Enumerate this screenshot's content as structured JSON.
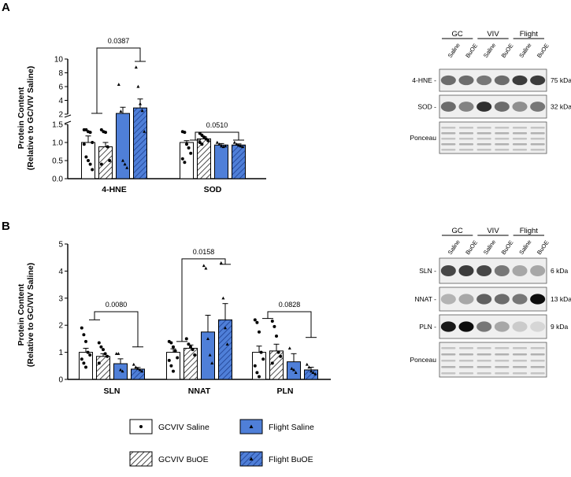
{
  "panels": {
    "a": {
      "label": "A"
    },
    "b": {
      "label": "B"
    }
  },
  "colors": {
    "saline_fill": "#ffffff",
    "flight_fill": "#4f7fd8",
    "flight_hatch": "#1e3f8f",
    "axis": "#000000",
    "blot_bg": "#efefef"
  },
  "chart_data": [
    {
      "id": "panel-a",
      "type": "bar",
      "ylabel": "Protein Content\n(Relative to GC/VIV Saline)",
      "axis_break": true,
      "ylim_lower": [
        0,
        1.5
      ],
      "ylim_upper": [
        2,
        10
      ],
      "yticks_lower": [
        "0.0",
        "0.5",
        "1.0",
        "1.5"
      ],
      "yticks_upper": [
        "2",
        "4",
        "6",
        "8",
        "10"
      ],
      "categories": [
        "4-HNE",
        "SOD"
      ],
      "series": [
        {
          "name": "GCVIV Saline",
          "values": [
            1.0,
            1.0
          ],
          "sem": [
            0.18,
            0.05
          ]
        },
        {
          "name": "GCVIV BuOE",
          "values": [
            0.88,
            1.1
          ],
          "sem": [
            0.12,
            0.06
          ]
        },
        {
          "name": "Flight Saline",
          "values": [
            2.1,
            0.93
          ],
          "sem": [
            0.9,
            0.04
          ]
        },
        {
          "name": "Flight BuOE",
          "values": [
            2.9,
            0.93
          ],
          "sem": [
            1.3,
            0.03
          ]
        }
      ],
      "points": [
        [
          [
            1.35,
            1.35,
            1.3,
            1.28,
            1.0,
            0.95,
            0.6,
            0.5,
            0.4,
            0.25
          ],
          [
            1.3,
            1.28,
            0.95,
            0.85,
            0.7,
            0.55,
            0.45
          ]
        ],
        [
          [
            1.35,
            1.3,
            1.28,
            0.88,
            0.5,
            0.4
          ],
          [
            1.25,
            1.2,
            1.15,
            1.1,
            1.05,
            1.0,
            0.95
          ]
        ],
        [
          [
            6.3,
            2.4,
            0.5,
            0.4,
            0.3
          ],
          [
            1.0,
            0.95,
            0.9,
            0.88,
            0.9
          ]
        ],
        [
          [
            8.8,
            6.0,
            3.5,
            2.5,
            1.3
          ],
          [
            1.0,
            0.95,
            0.92,
            0.9,
            0.88
          ]
        ]
      ],
      "annotations": [
        {
          "text": "0.0387",
          "category": "4-HNE"
        },
        {
          "text": "0.0510",
          "category": "SOD"
        }
      ]
    },
    {
      "id": "panel-b",
      "type": "bar",
      "ylabel": "Protein Content\n(Relative to GC/VIV Saline)",
      "ylim": [
        0,
        5
      ],
      "yticks": [
        "0",
        "1",
        "2",
        "3",
        "4",
        "5"
      ],
      "categories": [
        "SLN",
        "NNAT",
        "PLN"
      ],
      "series": [
        {
          "name": "GCVIV Saline",
          "values": [
            1.0,
            1.0,
            1.0
          ],
          "sem": [
            0.15,
            0.13,
            0.23
          ]
        },
        {
          "name": "GCVIV BuOE",
          "values": [
            0.85,
            1.15,
            1.05
          ],
          "sem": [
            0.1,
            0.12,
            0.25
          ]
        },
        {
          "name": "Flight Saline",
          "values": [
            0.58,
            1.75,
            0.65
          ],
          "sem": [
            0.18,
            0.62,
            0.3
          ]
        },
        {
          "name": "Flight BuOE",
          "values": [
            0.38,
            2.2,
            0.35
          ],
          "sem": [
            0.06,
            0.6,
            0.1
          ]
        }
      ],
      "points": [
        [
          [
            1.9,
            1.65,
            1.4,
            1.0,
            0.9,
            0.75,
            0.6,
            0.45
          ],
          [
            1.4,
            1.35,
            1.2,
            1.05,
            0.8,
            0.7,
            0.5,
            0.3
          ],
          [
            2.2,
            2.1,
            1.75,
            1.0,
            0.75,
            0.5,
            0.25,
            0.1
          ]
        ],
        [
          [
            1.35,
            1.2,
            1.1,
            0.95,
            0.85,
            0.6
          ],
          [
            1.5,
            1.3,
            1.2,
            1.1,
            0.9
          ],
          [
            2.15,
            1.95,
            1.6,
            1.0,
            0.85,
            0.6
          ]
        ],
        [
          [
            0.95,
            0.95,
            0.35,
            0.3
          ],
          [
            4.2,
            4.1,
            1.5,
            0.9,
            0.6
          ],
          [
            1.15,
            0.4,
            0.35,
            0.25
          ]
        ],
        [
          [
            0.55,
            0.45,
            0.4,
            0.35,
            0.3
          ],
          [
            4.3,
            3.0,
            1.9,
            1.3
          ],
          [
            0.55,
            0.45,
            0.3,
            0.25,
            0.2
          ]
        ]
      ],
      "annotations": [
        {
          "text": "0.0080",
          "category": "SLN"
        },
        {
          "text": "0.0158",
          "category": "NNAT"
        },
        {
          "text": "0.0828",
          "category": "PLN"
        }
      ]
    }
  ],
  "legend": {
    "items": [
      {
        "label": "GCVIV Saline",
        "marker": "circle"
      },
      {
        "label": "Flight Saline",
        "marker": "triangle"
      },
      {
        "label": "GCVIV BuOE",
        "marker": "square"
      },
      {
        "label": "Flight BuOE",
        "marker": "triangle"
      }
    ]
  },
  "blots": {
    "a": {
      "groups": [
        "GC",
        "VIV",
        "Flight"
      ],
      "lanes": [
        "Saline",
        "BuOE",
        "Saline",
        "BuOE",
        "Saline",
        "BuOE"
      ],
      "rows": [
        {
          "label": "4-HNE -",
          "kda": "75 kDa"
        },
        {
          "label": "SOD -",
          "kda": "32 kDa"
        },
        {
          "label": "Ponceau",
          "kda": ""
        }
      ],
      "intensity": [
        [
          0.55,
          0.55,
          0.5,
          0.55,
          0.75,
          0.75
        ],
        [
          0.55,
          0.45,
          0.8,
          0.55,
          0.4,
          0.5
        ],
        [
          0.25,
          0.25,
          0.25,
          0.25,
          0.25,
          0.25
        ]
      ]
    },
    "b": {
      "groups": [
        "GC",
        "VIV",
        "Flight"
      ],
      "lanes": [
        "Saline",
        "BuOE",
        "Saline",
        "BuOE",
        "Saline",
        "BuOE"
      ],
      "rows": [
        {
          "label": "SLN -",
          "kda": "6 kDa"
        },
        {
          "label": "NNAT -",
          "kda": "13 kDa"
        },
        {
          "label": "PLN -",
          "kda": "9 kDa"
        },
        {
          "label": "Ponceau",
          "kda": ""
        }
      ],
      "intensity": [
        [
          0.7,
          0.75,
          0.7,
          0.5,
          0.3,
          0.3
        ],
        [
          0.25,
          0.3,
          0.6,
          0.55,
          0.5,
          0.95
        ],
        [
          0.9,
          0.95,
          0.5,
          0.3,
          0.15,
          0.1
        ],
        [
          0.25,
          0.25,
          0.25,
          0.25,
          0.25,
          0.25
        ]
      ]
    }
  }
}
